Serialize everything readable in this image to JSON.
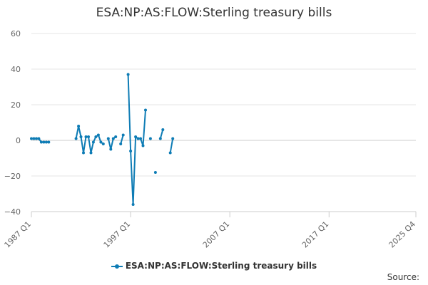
{
  "chart_data": {
    "type": "line",
    "title": "ESA:NP:AS:FLOW:Sterling treasury bills",
    "xlabel": "",
    "ylabel": "",
    "ylim": [
      -40,
      60
    ],
    "yticks": [
      -40,
      -20,
      0,
      20,
      40,
      60
    ],
    "xticks": [
      "1987 Q1",
      "1997 Q1",
      "2007 Q1",
      "2017 Q1",
      "2025 Q4"
    ],
    "grid": true,
    "legend_position": "bottom",
    "source_label": "Source:",
    "series": [
      {
        "name": "ESA:NP:AS:FLOW:Sterling treasury bills",
        "color": "#0e7cb5",
        "points": [
          [
            "1987 Q1",
            1
          ],
          [
            "1987 Q2",
            1
          ],
          [
            "1987 Q3",
            1
          ],
          [
            "1987 Q4",
            1
          ],
          [
            "1988 Q1",
            -1
          ],
          [
            "1988 Q2",
            -1
          ],
          [
            "1988 Q3",
            -1
          ],
          [
            "1988 Q4",
            -1
          ],
          [
            "1991 Q3",
            1
          ],
          [
            "1991 Q4",
            8
          ],
          [
            "1992 Q1",
            2
          ],
          [
            "1992 Q2",
            -7
          ],
          [
            "1992 Q3",
            2
          ],
          [
            "1992 Q4",
            2
          ],
          [
            "1993 Q1",
            -7
          ],
          [
            "1993 Q2",
            -1
          ],
          [
            "1993 Q3",
            2
          ],
          [
            "1993 Q4",
            3
          ],
          [
            "1994 Q1",
            -1
          ],
          [
            "1994 Q2",
            -2
          ],
          [
            "1994 Q4",
            1
          ],
          [
            "1995 Q1",
            -5
          ],
          [
            "1995 Q2",
            1
          ],
          [
            "1995 Q3",
            2
          ],
          [
            "1996 Q1",
            -2
          ],
          [
            "1996 Q2",
            3
          ],
          [
            "1996 Q4",
            37
          ],
          [
            "1997 Q1",
            -6
          ],
          [
            "1997 Q2",
            -36
          ],
          [
            "1997 Q3",
            2
          ],
          [
            "1997 Q4",
            1
          ],
          [
            "1998 Q1",
            1
          ],
          [
            "1998 Q2",
            -3
          ],
          [
            "1998 Q3",
            17
          ],
          [
            "1999 Q1",
            1
          ],
          [
            "1999 Q3",
            -18
          ],
          [
            "2000 Q1",
            1
          ],
          [
            "2000 Q2",
            6
          ],
          [
            "2001 Q1",
            -7
          ],
          [
            "2001 Q2",
            1
          ]
        ]
      }
    ]
  }
}
